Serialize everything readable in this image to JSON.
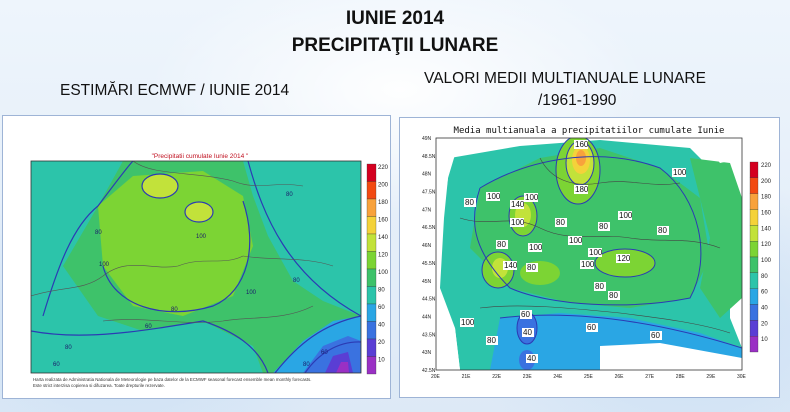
{
  "header": {
    "title_line1": "IUNIE 2014",
    "title_line2": "PRECIPITAŢII LUNARE"
  },
  "left_panel": {
    "heading": "ESTIMĂRI ECMWF / IUNIE 2014",
    "map_title": "\"Precipitatii cumulate Iunie 2014 \"",
    "colorbar": [
      "220",
      "200",
      "180",
      "160",
      "140",
      "120",
      "100",
      "80",
      "60",
      "40",
      "20",
      "10"
    ],
    "contour_labels": [
      "80",
      "100",
      "80",
      "100",
      "80",
      "60",
      "80",
      "100",
      "80",
      "60",
      "80",
      "60"
    ],
    "footnote_line1": "Harta realizata de Administratia Nationala de Meteorologie pe baza datelor de la ECMWF seasonal forecast ensemble mean monthly forecasts.",
    "footnote_line2": "Este strict interzisa copierea si difuzarea. Toate drepturile rezervate."
  },
  "right_panel": {
    "heading_line1": "VALORI MEDII MULTIANUALE LUNARE",
    "heading_line2": "/1961-1990",
    "map_title": "Media multianuala a precipitatiilor cumulate Iunie",
    "y_ticks": [
      "49N",
      "48.5N",
      "48N",
      "47.5N",
      "47N",
      "46.5N",
      "46N",
      "45.5N",
      "45N",
      "44.5N",
      "44N",
      "43.5N",
      "43N",
      "42.5N"
    ],
    "x_ticks": [
      "20E",
      "21E",
      "22E",
      "23E",
      "24E",
      "25E",
      "26E",
      "27E",
      "28E",
      "29E",
      "30E"
    ],
    "colorbar": [
      "220",
      "200",
      "180",
      "160",
      "140",
      "120",
      "100",
      "80",
      "60",
      "40",
      "20",
      "10"
    ],
    "contour_labels": [
      "160",
      "180",
      "100",
      "140",
      "100",
      "80",
      "100",
      "80",
      "100",
      "80",
      "80",
      "100",
      "140",
      "100",
      "120",
      "100",
      "80",
      "80",
      "80",
      "100",
      "60",
      "40",
      "40",
      "60",
      "60",
      "80",
      "80",
      "100",
      "100"
    ]
  },
  "palette": [
    "#d40020",
    "#f24a12",
    "#f8a23c",
    "#f4d23a",
    "#c2e23a",
    "#7cd434",
    "#3ec26a",
    "#2cc4aa",
    "#2aa6e4",
    "#3a72e0",
    "#5a3ed4",
    "#9a30c4"
  ]
}
